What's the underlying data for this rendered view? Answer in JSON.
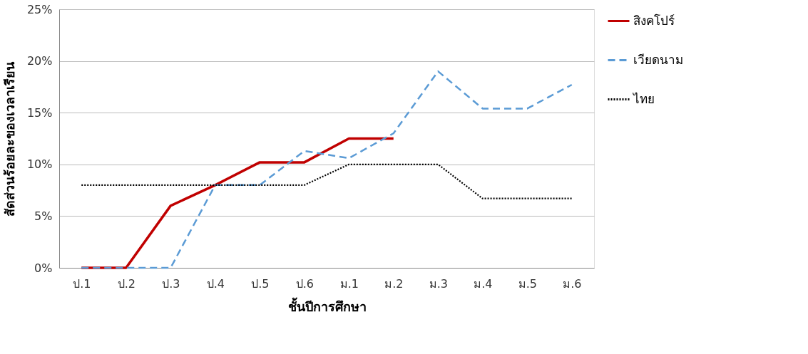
{
  "chart_data": {
    "type": "line",
    "xlabel": "ชั้นปีการศึกษา",
    "ylabel": "สัดส่วนร้อยละของเวลาเรียน",
    "categories": [
      "ป.1",
      "ป.2",
      "ป.3",
      "ป.4",
      "ป.5",
      "ป.6",
      "ม.1",
      "ม.2",
      "ม.3",
      "ม.4",
      "ม.5",
      "ม.6"
    ],
    "series": [
      {
        "name": "สิงคโปร์",
        "color": "#c00000",
        "line_style": "solid",
        "values": [
          0,
          0,
          6,
          8,
          10.2,
          10.2,
          12.5,
          12.5,
          null,
          null,
          null,
          null
        ]
      },
      {
        "name": "เวียดนาม",
        "color": "#5b9bd5",
        "line_style": "dashed",
        "values": [
          0,
          0,
          0,
          8,
          8,
          11.3,
          10.6,
          13,
          19,
          15.4,
          15.4,
          17.7
        ]
      },
      {
        "name": "ไทย",
        "color": "#000000",
        "line_style": "dotted",
        "values": [
          8,
          8,
          8,
          8,
          8,
          8,
          10,
          10,
          10,
          6.7,
          6.7,
          6.7
        ]
      }
    ],
    "ylim": [
      0,
      25
    ],
    "yticks": [
      {
        "value": 0,
        "label": "0%"
      },
      {
        "value": 5,
        "label": "5%"
      },
      {
        "value": 10,
        "label": "10%"
      },
      {
        "value": 15,
        "label": "15%"
      },
      {
        "value": 20,
        "label": "20%"
      },
      {
        "value": 25,
        "label": "25%"
      }
    ],
    "grid": "y",
    "legend": "right",
    "marker": "none"
  }
}
